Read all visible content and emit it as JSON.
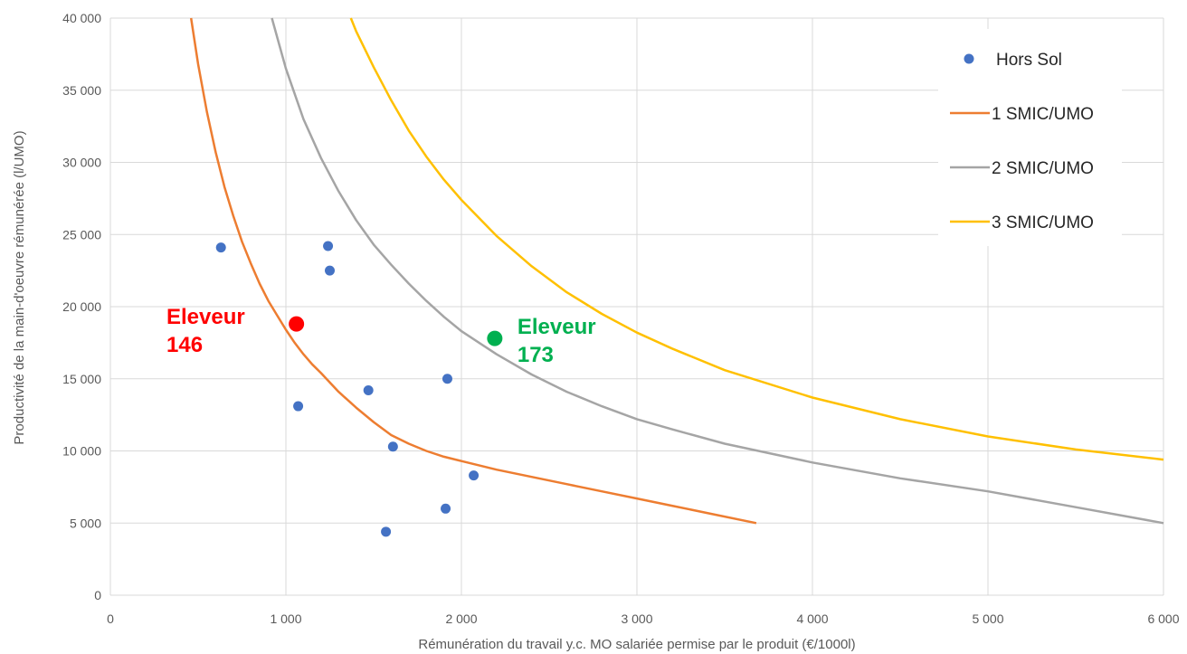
{
  "chart_data": {
    "type": "scatter",
    "xlabel": "Rémunération du travail y.c. MO salariée permise par le produit (€/1000l)",
    "ylabel": "Productivité de la main-d'oeuvre rémunérée (l/UMO)",
    "xlim": [
      0,
      6000
    ],
    "ylim": [
      0,
      40000
    ],
    "x_ticks": [
      0,
      1000,
      2000,
      3000,
      4000,
      5000,
      6000
    ],
    "x_tick_labels": [
      "0",
      "1 000",
      "2 000",
      "3 000",
      "4 000",
      "5 000",
      "6 000"
    ],
    "y_ticks": [
      0,
      5000,
      10000,
      15000,
      20000,
      25000,
      30000,
      35000,
      40000
    ],
    "y_tick_labels": [
      "0",
      "5 000",
      "10 000",
      "15 000",
      "20 000",
      "25 000",
      "30 000",
      "35 000",
      "40 000"
    ],
    "grid": true,
    "legend_position": "top-right",
    "series": [
      {
        "name": "Hors Sol",
        "kind": "scatter",
        "color": "#4472C4",
        "x": [
          630,
          1070,
          1240,
          1250,
          1470,
          1570,
          1610,
          1910,
          1920,
          2070
        ],
        "y": [
          24100,
          13100,
          24200,
          22500,
          14200,
          4400,
          10300,
          6000,
          15000,
          8300
        ]
      },
      {
        "name": "1 SMIC/UMO",
        "kind": "line",
        "color": "#ED7D31",
        "x": [
          460,
          500,
          550,
          600,
          650,
          700,
          750,
          800,
          850,
          900,
          950,
          1000,
          1050,
          1100,
          1150,
          1200,
          1300,
          1400,
          1500,
          1600,
          1700,
          1800,
          1900,
          2000,
          2200,
          2400,
          2600,
          2800,
          3000,
          3200,
          3400,
          3680
        ],
        "y": [
          40000,
          36800,
          33500,
          30700,
          28300,
          26300,
          24500,
          23000,
          21600,
          20400,
          19400,
          18400,
          17500,
          16700,
          16000,
          15400,
          14100,
          13000,
          12000,
          11100,
          10500,
          10000,
          9600,
          9300,
          8700,
          8200,
          7700,
          7200,
          6700,
          6200,
          5700,
          5000
        ]
      },
      {
        "name": "2 SMIC/UMO",
        "kind": "line",
        "color": "#A5A5A5",
        "x": [
          920,
          1000,
          1100,
          1200,
          1300,
          1400,
          1500,
          1600,
          1700,
          1800,
          1900,
          2000,
          2200,
          2400,
          2600,
          2800,
          3000,
          3200,
          3500,
          4000,
          4500,
          5000,
          5500,
          6000
        ],
        "y": [
          40000,
          36500,
          33000,
          30300,
          28000,
          26000,
          24300,
          22900,
          21600,
          20400,
          19300,
          18300,
          16700,
          15300,
          14100,
          13100,
          12200,
          11500,
          10500,
          9200,
          8100,
          7200,
          6100,
          5000
        ]
      },
      {
        "name": "3 SMIC/UMO",
        "kind": "line",
        "color": "#FFC000",
        "x": [
          1370,
          1400,
          1500,
          1600,
          1700,
          1800,
          1900,
          2000,
          2200,
          2400,
          2600,
          2800,
          3000,
          3200,
          3500,
          4000,
          4500,
          5000,
          5500,
          6000
        ],
        "y": [
          40000,
          39100,
          36600,
          34300,
          32200,
          30400,
          28800,
          27400,
          24900,
          22800,
          21000,
          19500,
          18200,
          17100,
          15600,
          13700,
          12200,
          11000,
          10100,
          9400
        ]
      }
    ],
    "highlighted_points": [
      {
        "label_line1": "Eleveur",
        "label_line2": "146",
        "x": 1060,
        "y": 18800,
        "color": "#FF0000",
        "label_side": "left"
      },
      {
        "label_line1": "Eleveur",
        "label_line2": "173",
        "x": 2190,
        "y": 17800,
        "color": "#00B050",
        "label_side": "right"
      }
    ]
  }
}
